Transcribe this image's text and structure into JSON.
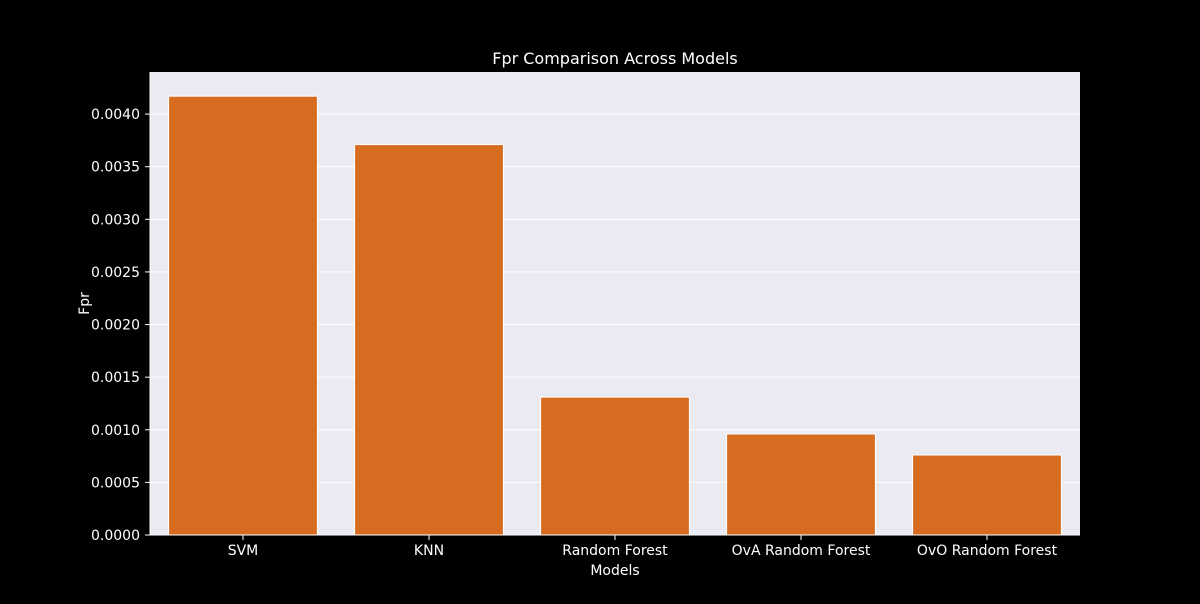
{
  "chart_data": {
    "type": "bar",
    "title": "Fpr Comparison Across Models",
    "xlabel": "Models",
    "ylabel": "Fpr",
    "categories": [
      "SVM",
      "KNN",
      "Random Forest",
      "OvA Random Forest",
      "OvO Random Forest"
    ],
    "values": [
      0.00417,
      0.00371,
      0.00131,
      0.00096,
      0.00076
    ],
    "ylim": [
      0,
      0.0044
    ],
    "yticks": [
      "0.0000",
      "0.0005",
      "0.0010",
      "0.0015",
      "0.0020",
      "0.0025",
      "0.0030",
      "0.0035",
      "0.0040"
    ],
    "grid": true,
    "colors": {
      "background": "#000000",
      "plot_area": "#eaeaf2",
      "bar": "#d76b20",
      "grid": "#ffffff",
      "text": "#ffffff"
    }
  }
}
